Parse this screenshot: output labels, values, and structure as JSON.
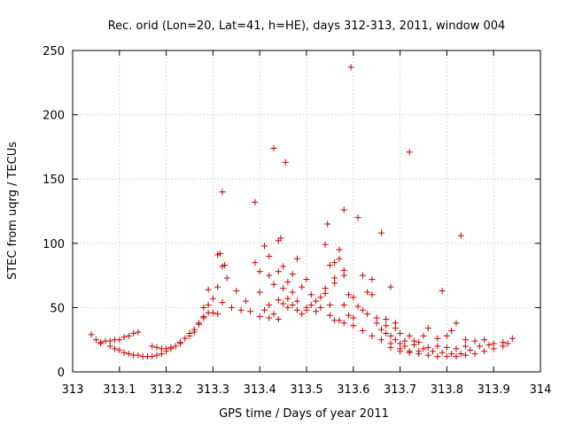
{
  "chart_data": {
    "type": "scatter",
    "title": "Rec. orid (Lon=20, Lat=41, h=HE), days 312-313, 2011, window 004",
    "xlabel": "GPS time / Days of year 2011",
    "ylabel": "STEC from uqrg / TECUs",
    "xlim": [
      313,
      314
    ],
    "ylim": [
      0,
      250
    ],
    "xticks": [
      313,
      313.1,
      313.2,
      313.3,
      313.4,
      313.5,
      313.6,
      313.7,
      313.8,
      313.9,
      314
    ],
    "xtick_labels": [
      "313",
      "313.1",
      "313.2",
      "313.3",
      "313.4",
      "313.5",
      "313.6",
      "313.7",
      "313.8",
      "313.9",
      "314"
    ],
    "yticks": [
      0,
      50,
      100,
      150,
      200,
      250
    ],
    "ytick_labels": [
      "0",
      "50",
      "100",
      "150",
      "200",
      "250"
    ],
    "grid": true,
    "marker": "+",
    "marker_color": "#cc0000",
    "series": [
      {
        "name": "STEC",
        "points": [
          [
            313.04,
            29
          ],
          [
            313.05,
            25
          ],
          [
            313.06,
            23
          ],
          [
            313.07,
            24
          ],
          [
            313.08,
            24
          ],
          [
            313.09,
            25
          ],
          [
            313.1,
            25
          ],
          [
            313.11,
            27
          ],
          [
            313.12,
            28
          ],
          [
            313.13,
            30
          ],
          [
            313.14,
            31
          ],
          [
            313.06,
            22
          ],
          [
            313.08,
            20
          ],
          [
            313.09,
            18
          ],
          [
            313.1,
            17
          ],
          [
            313.11,
            15
          ],
          [
            313.12,
            14
          ],
          [
            313.13,
            13
          ],
          [
            313.14,
            13
          ],
          [
            313.15,
            12
          ],
          [
            313.16,
            12
          ],
          [
            313.17,
            12
          ],
          [
            313.18,
            13
          ],
          [
            313.19,
            14
          ],
          [
            313.2,
            16
          ],
          [
            313.21,
            18
          ],
          [
            313.22,
            20
          ],
          [
            313.23,
            23
          ],
          [
            313.24,
            26
          ],
          [
            313.25,
            30
          ],
          [
            313.26,
            33
          ],
          [
            313.27,
            37
          ],
          [
            313.28,
            42
          ],
          [
            313.29,
            46
          ],
          [
            313.17,
            20
          ],
          [
            313.18,
            19
          ],
          [
            313.19,
            18
          ],
          [
            313.2,
            18
          ],
          [
            313.21,
            19
          ],
          [
            313.23,
            22
          ],
          [
            313.25,
            28
          ],
          [
            313.26,
            31
          ],
          [
            313.27,
            38
          ],
          [
            313.28,
            43
          ],
          [
            313.3,
            46
          ],
          [
            313.31,
            45
          ],
          [
            313.28,
            50
          ],
          [
            313.29,
            52
          ],
          [
            313.3,
            57
          ],
          [
            313.32,
            54
          ],
          [
            313.34,
            50
          ],
          [
            313.36,
            48
          ],
          [
            313.38,
            47
          ],
          [
            313.4,
            43
          ],
          [
            313.42,
            42
          ],
          [
            313.44,
            41
          ],
          [
            313.29,
            64
          ],
          [
            313.31,
            66
          ],
          [
            313.33,
            73
          ],
          [
            313.35,
            63
          ],
          [
            313.37,
            55
          ],
          [
            313.31,
            91
          ],
          [
            313.315,
            92
          ],
          [
            313.32,
            82
          ],
          [
            313.325,
            83
          ],
          [
            313.32,
            140
          ],
          [
            313.39,
            132
          ],
          [
            313.39,
            85
          ],
          [
            313.4,
            62
          ],
          [
            313.4,
            78
          ],
          [
            313.41,
            98
          ],
          [
            313.42,
            90
          ],
          [
            313.42,
            75
          ],
          [
            313.43,
            68
          ],
          [
            313.43,
            174
          ],
          [
            313.44,
            78
          ],
          [
            313.44,
            102
          ],
          [
            313.445,
            104
          ],
          [
            313.45,
            65
          ],
          [
            313.45,
            82
          ],
          [
            313.455,
            163
          ],
          [
            313.46,
            70
          ],
          [
            313.46,
            57
          ],
          [
            313.47,
            62
          ],
          [
            313.47,
            76
          ],
          [
            313.48,
            88
          ],
          [
            313.48,
            55
          ],
          [
            313.49,
            66
          ],
          [
            313.5,
            72
          ],
          [
            313.5,
            50
          ],
          [
            313.41,
            48
          ],
          [
            313.42,
            52
          ],
          [
            313.43,
            45
          ],
          [
            313.44,
            56
          ],
          [
            313.45,
            53
          ],
          [
            313.46,
            50
          ],
          [
            313.47,
            52
          ],
          [
            313.48,
            48
          ],
          [
            313.49,
            45
          ],
          [
            313.5,
            48
          ],
          [
            313.51,
            52
          ],
          [
            313.52,
            47
          ],
          [
            313.51,
            60
          ],
          [
            313.52,
            55
          ],
          [
            313.53,
            50
          ],
          [
            313.53,
            58
          ],
          [
            313.54,
            65
          ],
          [
            313.54,
            61
          ],
          [
            313.55,
            44
          ],
          [
            313.55,
            52
          ],
          [
            313.55,
            83
          ],
          [
            313.56,
            85
          ],
          [
            313.56,
            73
          ],
          [
            313.56,
            69
          ],
          [
            313.54,
            99
          ],
          [
            313.545,
            115
          ],
          [
            313.57,
            95
          ],
          [
            313.57,
            88
          ],
          [
            313.58,
            75
          ],
          [
            313.58,
            79
          ],
          [
            313.57,
            40
          ],
          [
            313.58,
            52
          ],
          [
            313.58,
            126
          ],
          [
            313.59,
            60
          ],
          [
            313.59,
            44
          ],
          [
            313.595,
            237
          ],
          [
            313.6,
            58
          ],
          [
            313.6,
            42
          ],
          [
            313.61,
            120
          ],
          [
            313.61,
            51
          ],
          [
            313.62,
            75
          ],
          [
            313.62,
            48
          ],
          [
            313.63,
            62
          ],
          [
            313.63,
            45
          ],
          [
            313.64,
            60
          ],
          [
            313.64,
            72
          ],
          [
            313.65,
            42
          ],
          [
            313.65,
            38
          ],
          [
            313.66,
            108
          ],
          [
            313.66,
            33
          ],
          [
            313.67,
            30
          ],
          [
            313.67,
            41
          ],
          [
            313.68,
            66
          ],
          [
            313.68,
            28
          ],
          [
            313.69,
            38
          ],
          [
            313.69,
            25
          ],
          [
            313.7,
            30
          ],
          [
            313.7,
            22
          ],
          [
            313.71,
            20
          ],
          [
            313.72,
            171
          ],
          [
            313.72,
            28
          ],
          [
            313.73,
            24
          ],
          [
            313.74,
            23
          ],
          [
            313.75,
            28
          ],
          [
            313.76,
            34
          ],
          [
            313.78,
            26
          ],
          [
            313.79,
            63
          ],
          [
            313.8,
            28
          ],
          [
            313.81,
            32
          ],
          [
            313.82,
            38
          ],
          [
            313.83,
            106
          ],
          [
            313.84,
            25
          ],
          [
            313.86,
            24
          ],
          [
            313.88,
            25
          ],
          [
            313.9,
            22
          ],
          [
            313.92,
            23
          ],
          [
            313.94,
            26
          ],
          [
            313.56,
            40
          ],
          [
            313.58,
            38
          ],
          [
            313.6,
            36
          ],
          [
            313.62,
            32
          ],
          [
            313.64,
            28
          ],
          [
            313.66,
            25
          ],
          [
            313.68,
            22
          ],
          [
            313.7,
            18
          ],
          [
            313.72,
            16
          ],
          [
            313.74,
            14
          ],
          [
            313.76,
            13
          ],
          [
            313.78,
            12
          ],
          [
            313.8,
            12
          ],
          [
            313.82,
            12
          ],
          [
            313.84,
            13
          ],
          [
            313.86,
            14
          ],
          [
            313.88,
            16
          ],
          [
            313.9,
            18
          ],
          [
            313.92,
            20
          ],
          [
            313.93,
            22
          ],
          [
            313.67,
            36
          ],
          [
            313.69,
            34
          ],
          [
            313.71,
            24
          ],
          [
            313.73,
            21
          ],
          [
            313.75,
            18
          ],
          [
            313.77,
            16
          ],
          [
            313.79,
            15
          ],
          [
            313.81,
            14
          ],
          [
            313.83,
            14
          ],
          [
            313.85,
            17
          ],
          [
            313.87,
            20
          ],
          [
            313.89,
            21
          ],
          [
            313.68,
            19
          ],
          [
            313.7,
            16
          ],
          [
            313.72,
            15
          ],
          [
            313.74,
            16
          ],
          [
            313.76,
            19
          ],
          [
            313.78,
            20
          ],
          [
            313.8,
            19
          ],
          [
            313.82,
            18
          ],
          [
            313.84,
            20
          ]
        ]
      }
    ]
  }
}
